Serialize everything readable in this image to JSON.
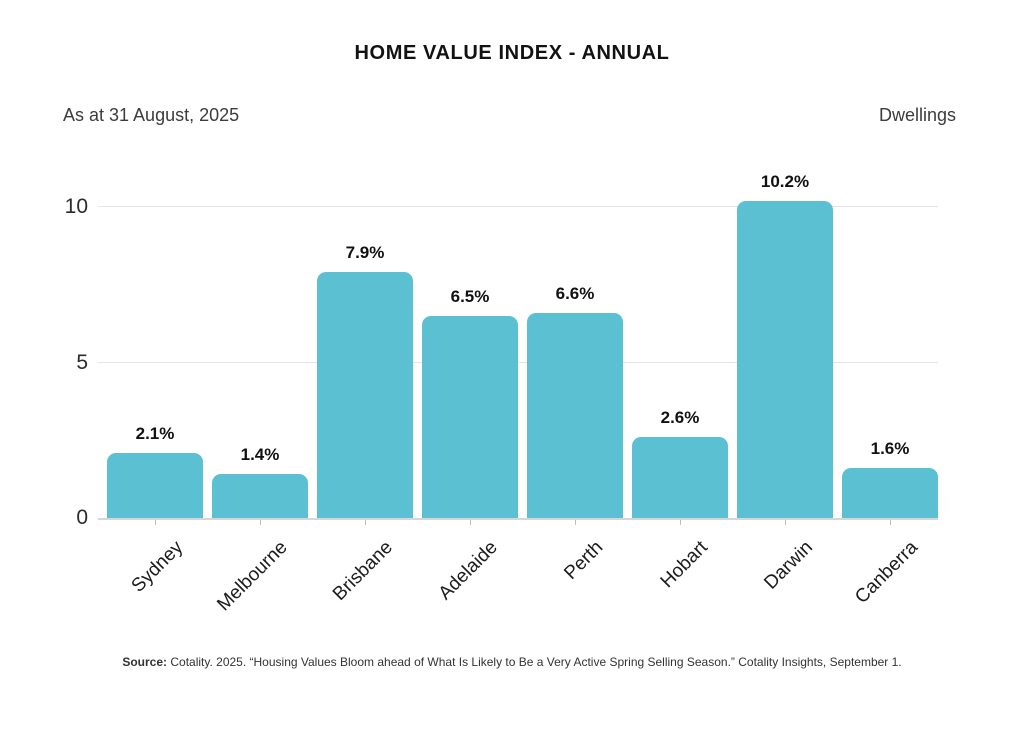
{
  "page": {
    "title": "HOME VALUE INDEX - ANNUAL",
    "as_at": "As at 31 August, 2025",
    "series_label": "Dwellings",
    "source_label": "Source:",
    "source_text": " Cotality. 2025. “Housing Values Bloom ahead of What Is Likely to Be a Very Active Spring Selling Season.” Cotality Insights, September 1."
  },
  "colors": {
    "bar": "#5bc0d2",
    "gridline": "#e4e4e4",
    "axis_line": "#d6d6d6",
    "title_text": "#121212",
    "muted_text": "#3c3c3c"
  },
  "chart_data": {
    "type": "bar",
    "title": "HOME VALUE INDEX - ANNUAL",
    "subtitle": "As at 31 August, 2025",
    "series_name": "Dwellings",
    "categories": [
      "Sydney",
      "Melbourne",
      "Brisbane",
      "Adelaide",
      "Perth",
      "Hobart",
      "Darwin",
      "Canberra"
    ],
    "values": [
      2.1,
      1.4,
      7.9,
      6.5,
      6.6,
      2.6,
      10.2,
      1.6
    ],
    "value_labels": [
      "2.1%",
      "1.4%",
      "7.9%",
      "6.5%",
      "6.6%",
      "2.6%",
      "10.2%",
      "1.6%"
    ],
    "xlabel": "",
    "ylabel": "",
    "yticks": [
      0,
      5,
      10
    ],
    "ylim": [
      0,
      10.9
    ],
    "grid": "horizontal",
    "legend": "none",
    "bar_color": "#5bc0d2"
  }
}
